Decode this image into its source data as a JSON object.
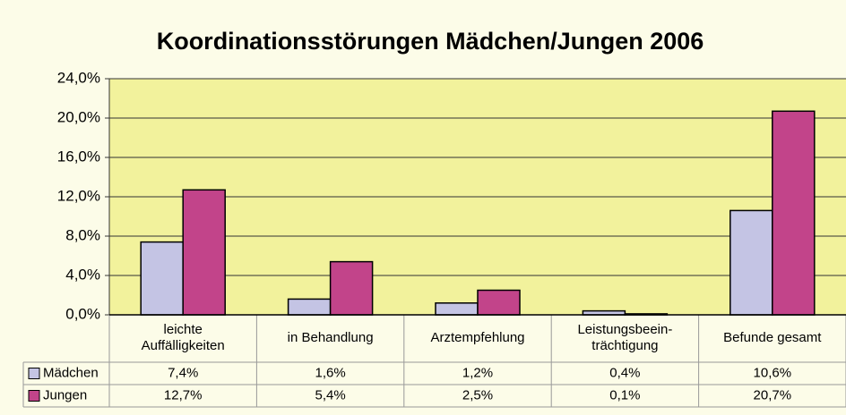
{
  "chart_data": {
    "type": "bar",
    "title": "Koordinationsstörungen Mädchen/Jungen 2006",
    "categories": [
      "leichte\nAuffälligkeiten",
      "in Behandlung",
      "Arztempfehlung",
      "Leistungsbeein-\nträchtigung",
      "Befunde gesamt"
    ],
    "series": [
      {
        "name": "Mädchen",
        "color": "#c4c4e4",
        "values": [
          7.4,
          1.6,
          1.2,
          0.4,
          10.6
        ],
        "value_labels": [
          "7,4%",
          "1,6%",
          "1,2%",
          "0,4%",
          "10,6%"
        ]
      },
      {
        "name": "Jungen",
        "color": "#c2448a",
        "values": [
          12.7,
          5.4,
          2.5,
          0.1,
          20.7
        ],
        "value_labels": [
          "12,7%",
          "5,4%",
          "2,5%",
          "0,1%",
          "20,7%"
        ]
      }
    ],
    "ylim": [
      0,
      24
    ],
    "yticks": [
      {
        "value": 0,
        "label": "0,0%"
      },
      {
        "value": 4,
        "label": "4,0%"
      },
      {
        "value": 8,
        "label": "8,0%"
      },
      {
        "value": 12,
        "label": "12,0%"
      },
      {
        "value": 16,
        "label": "16,0%"
      },
      {
        "value": 20,
        "label": "20,0%"
      },
      {
        "value": 24,
        "label": "24,0%"
      }
    ],
    "grid": true
  }
}
